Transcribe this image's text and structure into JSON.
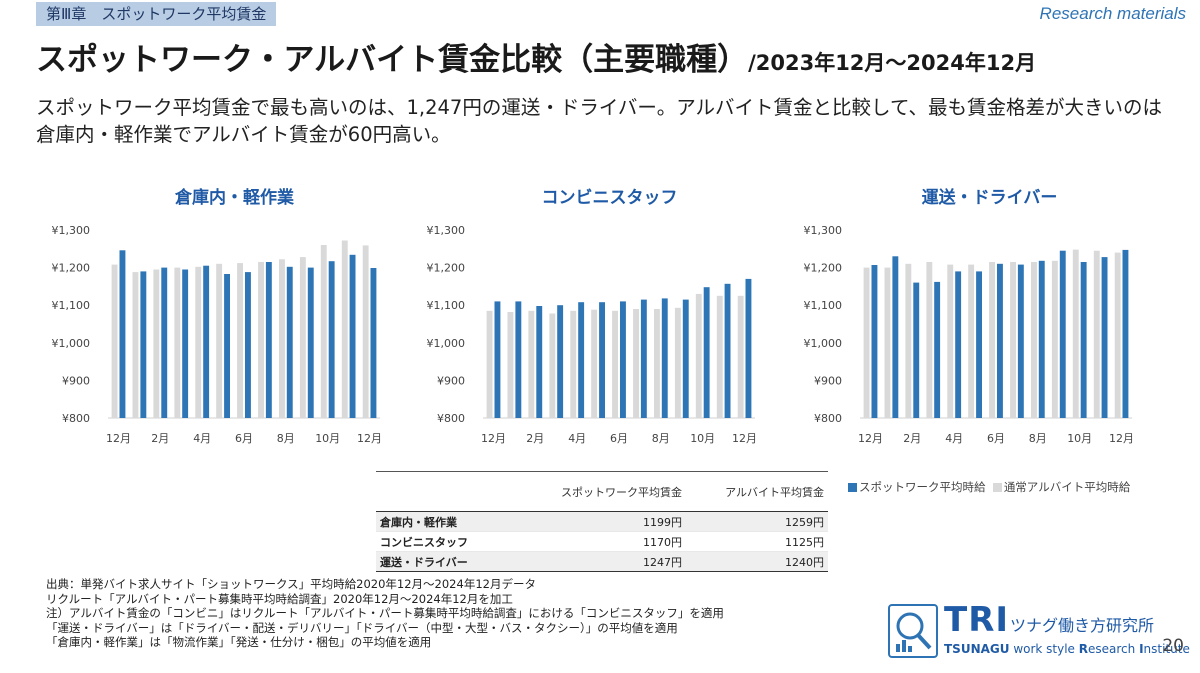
{
  "header": {
    "chapter": "第Ⅲ章　スポットワーク平均賃金",
    "research": "Research materials",
    "title": "スポットワーク・アルバイト賃金比較（主要職種）",
    "title_range": "/2023年12月～2024年12月",
    "lead": "スポットワーク平均賃金で最も高いのは、1,247円の運送・ドライバー。アルバイト賃金と比較して、最も賃金格差が大きいのは倉庫内・軽作業でアルバイト賃金が60円高い。"
  },
  "colors": {
    "spot": "#2e75b6",
    "baito": "#d9d9d9"
  },
  "chart_data": [
    {
      "type": "bar",
      "title": "倉庫内・軽作業",
      "x": [
        "12月",
        "1月",
        "2月",
        "3月",
        "4月",
        "5月",
        "6月",
        "7月",
        "8月",
        "9月",
        "10月",
        "11月",
        "12月"
      ],
      "tick_labels": [
        "12月",
        "2月",
        "4月",
        "6月",
        "8月",
        "10月",
        "12月"
      ],
      "series": [
        {
          "name": "通常アルバイト平均時給",
          "values": [
            1208,
            1188,
            1195,
            1200,
            1202,
            1210,
            1212,
            1215,
            1222,
            1228,
            1260,
            1272,
            1259
          ]
        },
        {
          "name": "スポットワーク平均時給",
          "values": [
            1246,
            1190,
            1200,
            1195,
            1205,
            1183,
            1188,
            1215,
            1202,
            1200,
            1217,
            1234,
            1199
          ]
        }
      ],
      "yticks": [
        "¥1,300",
        "¥1,200",
        "¥1,100",
        "¥1,000",
        "¥900",
        "¥800"
      ],
      "ylim": [
        800,
        1300
      ]
    },
    {
      "type": "bar",
      "title": "コンビニスタッフ",
      "x": [
        "12月",
        "1月",
        "2月",
        "3月",
        "4月",
        "5月",
        "6月",
        "7月",
        "8月",
        "9月",
        "10月",
        "11月",
        "12月"
      ],
      "tick_labels": [
        "12月",
        "2月",
        "4月",
        "6月",
        "8月",
        "10月",
        "12月"
      ],
      "series": [
        {
          "name": "通常アルバイト平均時給",
          "values": [
            1085,
            1082,
            1085,
            1078,
            1085,
            1088,
            1085,
            1090,
            1090,
            1093,
            1130,
            1125,
            1125
          ]
        },
        {
          "name": "スポットワーク平均時給",
          "values": [
            1110,
            1110,
            1098,
            1100,
            1108,
            1108,
            1110,
            1115,
            1118,
            1115,
            1148,
            1157,
            1170
          ]
        }
      ],
      "yticks": [
        "¥1,300",
        "¥1,200",
        "¥1,100",
        "¥1,000",
        "¥900",
        "¥800"
      ],
      "ylim": [
        800,
        1300
      ]
    },
    {
      "type": "bar",
      "title": "運送・ドライバー",
      "x": [
        "12月",
        "1月",
        "2月",
        "3月",
        "4月",
        "5月",
        "6月",
        "7月",
        "8月",
        "9月",
        "10月",
        "11月",
        "12月"
      ],
      "tick_labels": [
        "12月",
        "2月",
        "4月",
        "6月",
        "8月",
        "10月",
        "12月"
      ],
      "series": [
        {
          "name": "通常アルバイト平均時給",
          "values": [
            1200,
            1200,
            1210,
            1215,
            1208,
            1208,
            1215,
            1215,
            1215,
            1218,
            1248,
            1245,
            1240
          ]
        },
        {
          "name": "スポットワーク平均時給",
          "values": [
            1207,
            1230,
            1160,
            1162,
            1190,
            1190,
            1210,
            1208,
            1218,
            1245,
            1215,
            1228,
            1247
          ]
        }
      ],
      "yticks": [
        "¥1,300",
        "¥1,200",
        "¥1,100",
        "¥1,000",
        "¥900",
        "¥800"
      ],
      "ylim": [
        800,
        1300
      ]
    }
  ],
  "legend": {
    "spot": "スポットワーク平均時給",
    "baito": "通常アルバイト平均時給"
  },
  "table": {
    "headers": [
      "スポットワーク平均賃金",
      "アルバイト平均賃金"
    ],
    "rows": [
      {
        "label": "倉庫内・軽作業",
        "spot": "1199円",
        "baito": "1259円"
      },
      {
        "label": "コンビニスタッフ",
        "spot": "1170円",
        "baito": "1125円"
      },
      {
        "label": "運送・ドライバー",
        "spot": "1247円",
        "baito": "1240円"
      }
    ]
  },
  "notes": [
    "出典：単発バイト求人サイト「ショットワークス」平均時給2020年12月～2024年12月データ",
    "リクルート「アルバイト・パート募集時平均時給調査」2020年12月～2024年12月を加工",
    "注）アルバイト賃金の「コンビニ」はリクルート「アルバイト・パート募集時平均時給調査」における「コンビニスタッフ」を適用",
    "「運送・ドライバー」は「ドライバー・配送・デリバリー」「ドライバー（中型・大型・バス・タクシー）」の平均値を適用",
    "「倉庫内・軽作業」は「物流作業」「発送・仕分け・梱包」の平均値を適用"
  ],
  "logo": {
    "tri": "TRI",
    "jp": "ツナグ働き方研究所",
    "en_a": "TSUNAGU",
    "en_b": " work style ",
    "en_c": "R",
    "en_d": "esearch ",
    "en_e": "I",
    "en_f": "nstitute"
  },
  "page_number": "20"
}
